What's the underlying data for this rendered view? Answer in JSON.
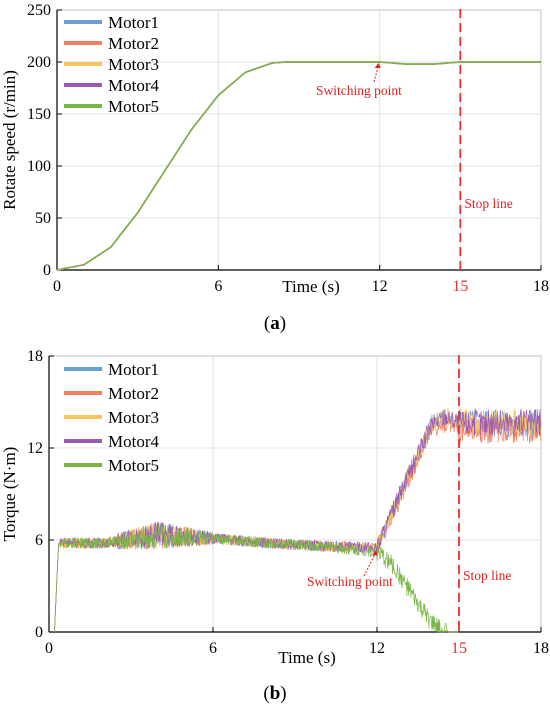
{
  "colors": {
    "motor1": "#6a9fd0",
    "motor2": "#f08060",
    "motor3": "#f6c560",
    "motor4": "#9b59b6",
    "motor5": "#7ab648",
    "curve": "#6aa52e",
    "stop": "#e53030",
    "annotation": "#e02020",
    "grid": "#e2e2e2",
    "axis": "#000000"
  },
  "chart_data": [
    {
      "id": "a",
      "type": "line",
      "caption_open": "(",
      "caption_letter": "a",
      "caption_close": ")",
      "xlabel": "Time (s)",
      "ylabel": "Rotate speed (r/min)",
      "xlim": [
        0,
        18
      ],
      "ylim": [
        0,
        250
      ],
      "x_ticks": [
        {
          "value": 0,
          "label": "0",
          "color": "default"
        },
        {
          "value": 6,
          "label": "6",
          "color": "default"
        },
        {
          "value": 12,
          "label": "12",
          "color": "default"
        },
        {
          "value": 15,
          "label": "15",
          "color": "red"
        },
        {
          "value": 18,
          "label": "18",
          "color": "default"
        }
      ],
      "y_ticks": [
        0,
        50,
        100,
        150,
        200,
        250
      ],
      "grid": true,
      "legend_position": "top-left",
      "series": [
        {
          "name": "Motor1",
          "color_key": "motor1",
          "x": [
            0,
            1,
            2,
            3,
            4,
            5,
            6,
            7,
            8,
            8.5,
            9,
            10,
            11,
            12,
            12.5,
            13,
            14,
            15,
            16,
            17,
            18
          ],
          "y": [
            0,
            5,
            22,
            55,
            95,
            135,
            168,
            190,
            199,
            200,
            200,
            200,
            200,
            200,
            199,
            198,
            198,
            200,
            200,
            200,
            200
          ]
        },
        {
          "name": "Motor2",
          "color_key": "motor2",
          "x": [
            0,
            1,
            2,
            3,
            4,
            5,
            6,
            7,
            8,
            8.5,
            9,
            10,
            11,
            12,
            12.5,
            13,
            14,
            15,
            16,
            17,
            18
          ],
          "y": [
            0,
            5,
            22,
            55,
            95,
            135,
            168,
            190,
            199,
            200,
            200,
            200,
            200,
            200,
            199,
            198,
            198,
            200,
            200,
            200,
            200
          ]
        },
        {
          "name": "Motor3",
          "color_key": "motor3",
          "x": [
            0,
            1,
            2,
            3,
            4,
            5,
            6,
            7,
            8,
            8.5,
            9,
            10,
            11,
            12,
            12.5,
            13,
            14,
            15,
            16,
            17,
            18
          ],
          "y": [
            0,
            5,
            22,
            55,
            95,
            135,
            168,
            190,
            199,
            200,
            200,
            200,
            200,
            200,
            199,
            198,
            198,
            200,
            200,
            200,
            200
          ]
        },
        {
          "name": "Motor4",
          "color_key": "motor4",
          "x": [
            0,
            1,
            2,
            3,
            4,
            5,
            6,
            7,
            8,
            8.5,
            9,
            10,
            11,
            12,
            12.5,
            13,
            14,
            15,
            16,
            17,
            18
          ],
          "y": [
            0,
            5,
            22,
            55,
            95,
            135,
            168,
            190,
            199,
            200,
            200,
            200,
            200,
            200,
            199,
            198,
            198,
            200,
            200,
            200,
            200
          ]
        },
        {
          "name": "Motor5",
          "color_key": "motor5",
          "x": [
            0,
            1,
            2,
            3,
            4,
            5,
            6,
            7,
            8,
            8.5,
            9,
            10,
            11,
            12,
            12.5,
            13,
            14,
            15,
            16,
            17,
            18
          ],
          "y": [
            0,
            5,
            22,
            55,
            95,
            135,
            168,
            190,
            199,
            200,
            200,
            200,
            200,
            200,
            199,
            198,
            198,
            200,
            200,
            200,
            200
          ]
        }
      ],
      "stop_line": {
        "x": 15,
        "label": "Stop line"
      },
      "switching_point": {
        "x": 12,
        "y": 200,
        "label": "Switching point"
      }
    },
    {
      "id": "b",
      "type": "line",
      "caption_open": "(",
      "caption_letter": "b",
      "caption_close": ")",
      "xlabel": "Time (s)",
      "ylabel": "Torque (N·m)",
      "xlim": [
        0,
        18
      ],
      "ylim": [
        0,
        18
      ],
      "x_ticks": [
        {
          "value": 0,
          "label": "0",
          "color": "default"
        },
        {
          "value": 6,
          "label": "6",
          "color": "default"
        },
        {
          "value": 12,
          "label": "12",
          "color": "default"
        },
        {
          "value": 15,
          "label": "15",
          "color": "red"
        },
        {
          "value": 18,
          "label": "18",
          "color": "default"
        }
      ],
      "y_ticks": [
        0,
        6,
        12,
        18
      ],
      "grid": true,
      "legend_position": "top-left",
      "series": [
        {
          "name": "Motor1",
          "color_key": "motor1",
          "x": [
            0.2,
            0.35,
            0.5,
            2,
            4,
            6,
            8,
            10,
            12,
            13,
            14,
            14.5,
            15,
            16,
            17,
            18
          ],
          "y": [
            0,
            5.8,
            5.8,
            5.8,
            6.3,
            6.1,
            5.8,
            5.6,
            5.5,
            9.5,
            13.5,
            14,
            13.6,
            13.6,
            13.6,
            13.6
          ]
        },
        {
          "name": "Motor2",
          "color_key": "motor2",
          "x": [
            0.2,
            0.35,
            0.5,
            2,
            4,
            6,
            8,
            10,
            12,
            13,
            14,
            14.5,
            15,
            16,
            17,
            18
          ],
          "y": [
            0,
            5.8,
            5.8,
            5.8,
            6.3,
            6.1,
            5.8,
            5.6,
            5.5,
            9.3,
            13.2,
            13.6,
            13.2,
            13.2,
            13.2,
            13.2
          ]
        },
        {
          "name": "Motor3",
          "color_key": "motor3",
          "x": [
            0.2,
            0.35,
            0.5,
            2,
            4,
            6,
            8,
            10,
            12,
            13,
            14,
            14.5,
            15,
            16,
            17,
            18
          ],
          "y": [
            0,
            5.8,
            5.8,
            5.8,
            6.3,
            6.1,
            5.8,
            5.6,
            5.5,
            9.6,
            13.6,
            14.1,
            13.7,
            13.7,
            13.7,
            13.7
          ]
        },
        {
          "name": "Motor4",
          "color_key": "motor4",
          "x": [
            0.2,
            0.35,
            0.5,
            2,
            4,
            6,
            8,
            10,
            12,
            13,
            14,
            14.5,
            15,
            16,
            17,
            18
          ],
          "y": [
            0,
            5.8,
            5.8,
            5.8,
            6.3,
            6.1,
            5.8,
            5.6,
            5.5,
            9.6,
            13.6,
            14.1,
            13.7,
            13.7,
            13.7,
            13.7
          ]
        },
        {
          "name": "Motor5",
          "color_key": "motor5",
          "x": [
            0.2,
            0.35,
            0.5,
            2,
            4,
            6,
            8,
            10,
            12,
            12.5,
            13,
            13.5,
            14,
            14.3,
            14.6,
            15
          ],
          "y": [
            0,
            5.8,
            5.8,
            5.8,
            6.3,
            6.1,
            5.8,
            5.6,
            5.2,
            4.5,
            3.2,
            1.8,
            0.6,
            0.2,
            0,
            0
          ]
        }
      ],
      "stop_line": {
        "x": 15,
        "label": "Stop line"
      },
      "switching_point": {
        "x": 12,
        "y": 5.4,
        "label": "Switching point"
      }
    }
  ]
}
